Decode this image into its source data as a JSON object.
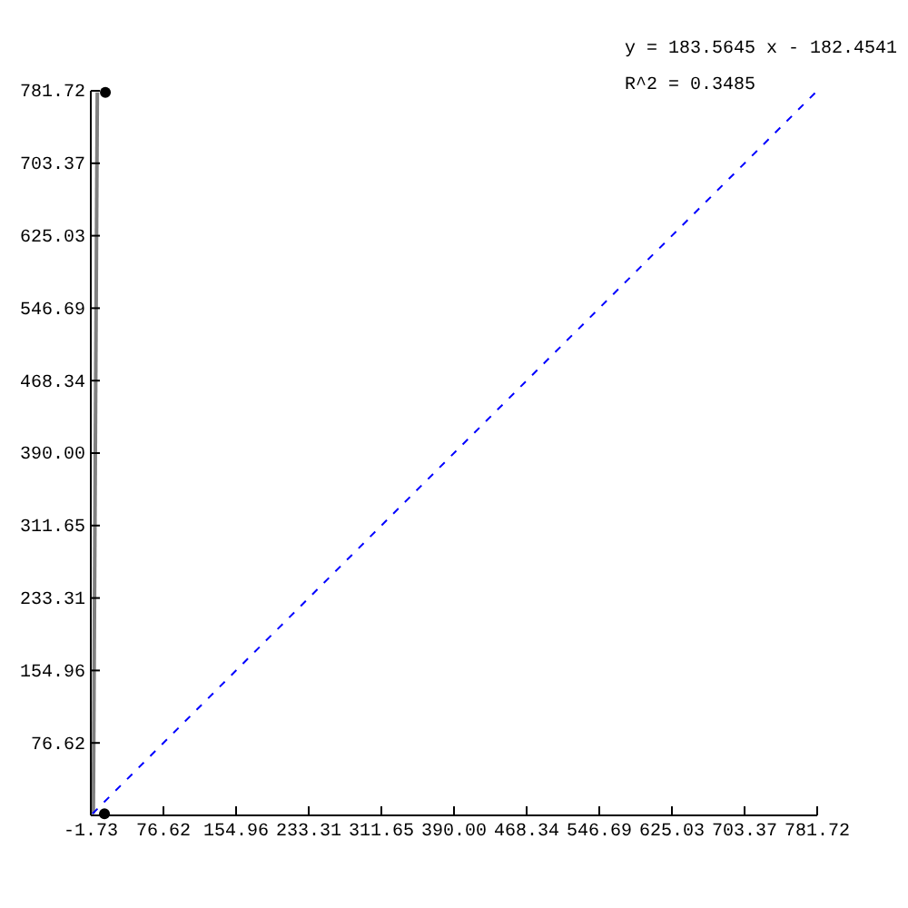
{
  "chart_data": {
    "type": "scatter",
    "annotations": [
      "y = 183.5645 x - 182.4541",
      "R^2 = 0.3485"
    ],
    "xlim": [
      -1.73,
      781.72
    ],
    "ylim": [
      -1.73,
      781.72
    ],
    "xticks": [
      -1.73,
      76.62,
      154.96,
      233.31,
      311.65,
      {
        "value": 390,
        "label": "390.00"
      },
      468.34,
      546.69,
      625.03,
      703.37,
      781.72
    ],
    "yticks": [
      76.62,
      154.96,
      233.31,
      311.65,
      {
        "value": 390,
        "label": "390.00"
      },
      468.34,
      546.69,
      625.03,
      703.37,
      781.72
    ],
    "grid": false,
    "series": [
      {
        "type": "line",
        "color": "#808080",
        "x": [
          1,
          5.3
        ],
        "values": [
          0,
          780
        ],
        "line_style": "solid"
      },
      {
        "type": "line",
        "color": "#0000ff",
        "x": [
          0,
          780
        ],
        "values": [
          0,
          780
        ],
        "line_style": "dashed"
      },
      {
        "type": "scatter",
        "color": "#000000",
        "x": [
          13,
          14
        ],
        "values": [
          0,
          780
        ],
        "marker": "circle"
      }
    ]
  }
}
